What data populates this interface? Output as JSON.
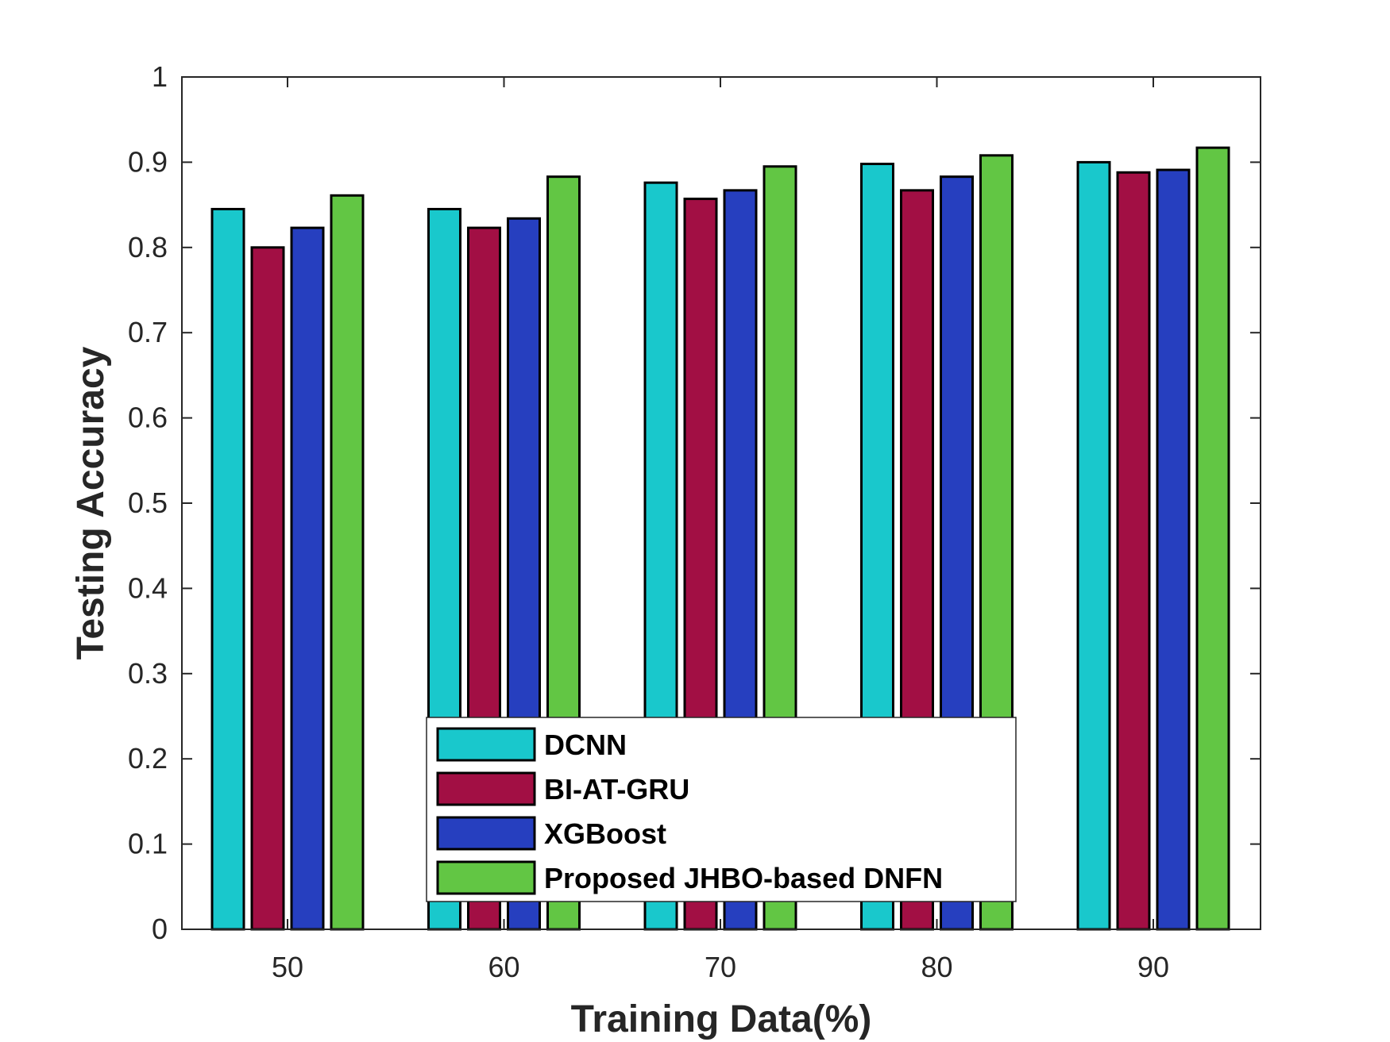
{
  "chart_data": {
    "type": "bar",
    "categories": [
      "50",
      "60",
      "70",
      "80",
      "90"
    ],
    "series": [
      {
        "name": "DCNN",
        "color": "#19C8CC",
        "values": [
          0.845,
          0.845,
          0.876,
          0.898,
          0.9
        ]
      },
      {
        "name": "BI-AT-GRU",
        "color": "#A20F44",
        "values": [
          0.8,
          0.823,
          0.857,
          0.867,
          0.888
        ]
      },
      {
        "name": "XGBoost",
        "color": "#263FBF",
        "values": [
          0.823,
          0.834,
          0.867,
          0.883,
          0.891
        ]
      },
      {
        "name": "Proposed JHBO-based DNFN",
        "color": "#62C644",
        "values": [
          0.861,
          0.883,
          0.895,
          0.908,
          0.917
        ]
      }
    ],
    "xlabel": "Training Data(%)",
    "ylabel": "Testing Accuracy",
    "ylim": [
      0,
      1
    ],
    "yticks": [
      "0",
      "0.1",
      "0.2",
      "0.3",
      "0.4",
      "0.5",
      "0.6",
      "0.7",
      "0.8",
      "0.9",
      "1"
    ],
    "legend_position": "bottom-center",
    "grid": false
  }
}
